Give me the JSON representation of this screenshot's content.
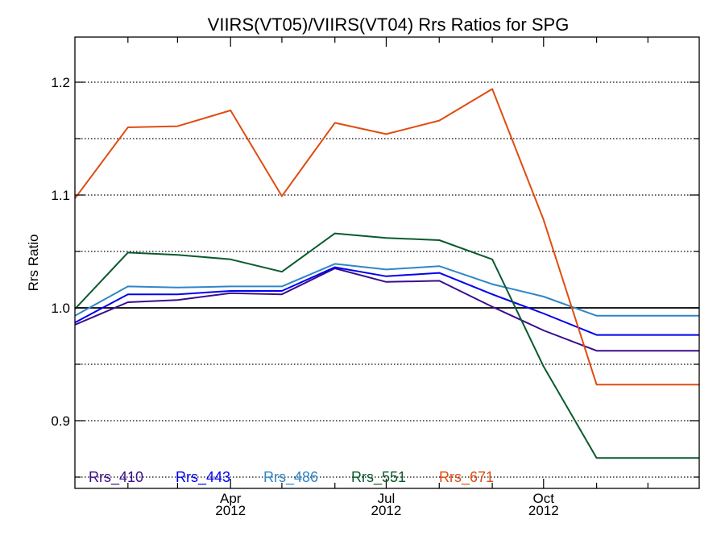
{
  "chart_data": {
    "type": "line",
    "title": "VIIRS(VT05)/VIIRS(VT04)  Rrs Ratios for SPG",
    "xlabel": "",
    "ylabel": "Rrs Ratio",
    "ylim": [
      0.84,
      1.24
    ],
    "xlim": [
      "2012-01-01",
      "2012-12-31"
    ],
    "y_ticks": [
      {
        "value": 0.9,
        "label": "0.9"
      },
      {
        "value": 1.0,
        "label": "1.0"
      },
      {
        "value": 1.1,
        "label": "1.1"
      },
      {
        "value": 1.2,
        "label": "1.2"
      }
    ],
    "x_ticks": [
      {
        "date": "2012-04-01",
        "label": "Apr",
        "year": "2012"
      },
      {
        "date": "2012-07-01",
        "label": "Jul",
        "year": "2012"
      },
      {
        "date": "2012-10-01",
        "label": "Oct",
        "year": "2012"
      }
    ],
    "reference_line": 1.0,
    "grid": "dotted horizontal at 0.05 intervals",
    "legend_position": "bottom-left",
    "x": [
      "2012-01-01",
      "2012-02-01",
      "2012-03-01",
      "2012-04-01",
      "2012-05-01",
      "2012-06-01",
      "2012-07-01",
      "2012-08-01",
      "2012-09-01",
      "2012-10-01",
      "2012-11-01",
      "2012-12-31"
    ],
    "series": [
      {
        "name": "Rrs_410",
        "color": "#3a0c8c",
        "values": [
          0.985,
          1.005,
          1.007,
          1.013,
          1.012,
          1.035,
          1.023,
          1.024,
          1.001,
          0.98,
          0.962,
          0.962
        ]
      },
      {
        "name": "Rrs_443",
        "color": "#0000f0",
        "values": [
          0.987,
          1.012,
          1.012,
          1.015,
          1.015,
          1.036,
          1.028,
          1.031,
          1.012,
          0.995,
          0.976,
          0.976
        ]
      },
      {
        "name": "Rrs_486",
        "color": "#2e86c8",
        "values": [
          0.993,
          1.019,
          1.018,
          1.019,
          1.019,
          1.039,
          1.034,
          1.037,
          1.021,
          1.01,
          0.993,
          0.993
        ]
      },
      {
        "name": "Rrs_551",
        "color": "#0a5a2c",
        "values": [
          0.999,
          1.049,
          1.047,
          1.043,
          1.032,
          1.066,
          1.062,
          1.06,
          1.043,
          0.948,
          0.867,
          0.867
        ]
      },
      {
        "name": "Rrs_671",
        "color": "#e04c10",
        "values": [
          1.097,
          1.16,
          1.161,
          1.175,
          1.099,
          1.164,
          1.154,
          1.166,
          1.194,
          1.078,
          0.932,
          0.932
        ]
      }
    ]
  }
}
